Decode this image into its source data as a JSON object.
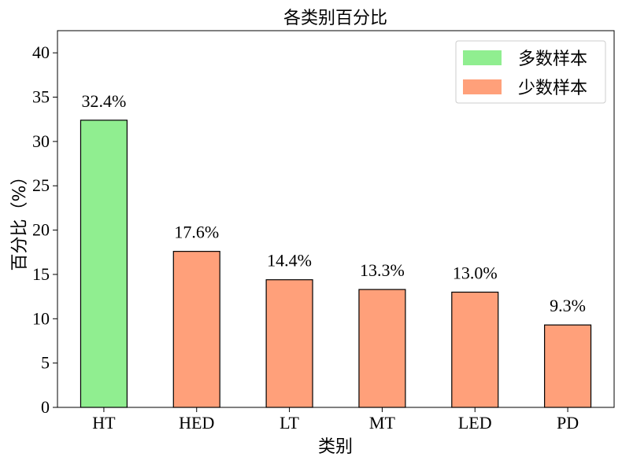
{
  "chart_data": {
    "type": "bar",
    "title": "各类别百分比",
    "xlabel": "类别",
    "ylabel": "百分比（%）",
    "categories": [
      "HT",
      "HED",
      "LT",
      "MT",
      "LED",
      "PD"
    ],
    "values": [
      32.4,
      17.6,
      14.4,
      13.3,
      13.0,
      9.3
    ],
    "value_labels": [
      "32.4%",
      "17.6%",
      "14.4%",
      "13.3%",
      "13.0%",
      "9.3%"
    ],
    "bar_groups": [
      "majority",
      "minority",
      "minority",
      "minority",
      "minority",
      "minority"
    ],
    "ylim": [
      0,
      42.5
    ],
    "yticks": [
      0,
      5,
      10,
      15,
      20,
      25,
      30,
      35,
      40
    ],
    "grid": false,
    "legend": {
      "placement": "top-right",
      "entries": [
        {
          "key": "majority",
          "label": "多数样本",
          "color": "#90EE90"
        },
        {
          "key": "minority",
          "label": "少数样本",
          "color": "#FFA07A"
        }
      ]
    },
    "bar_edge_color": "#000000"
  }
}
